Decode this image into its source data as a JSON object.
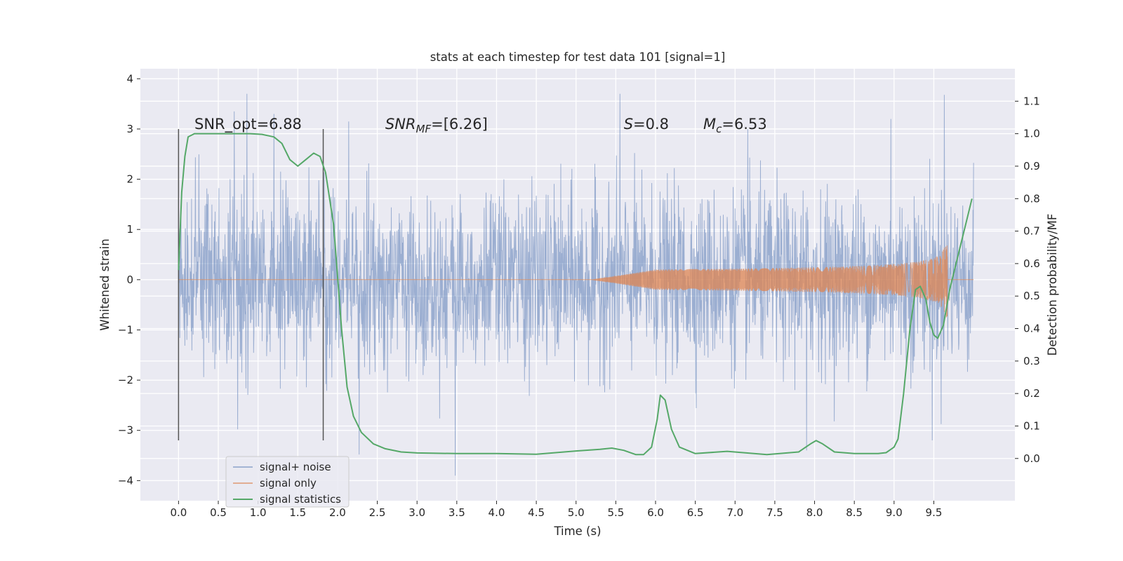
{
  "chart_data": {
    "type": "line",
    "title": "stats at each timestep for test data 101 [signal=1]",
    "xlabel": "Time (s)",
    "ylabel": "Whitened strain",
    "ylabel_right": "Detection probability/MF",
    "xlim": [
      -0.48,
      10.52
    ],
    "ylim": [
      -4.4,
      4.2
    ],
    "ylim_right": [
      -0.13,
      1.2
    ],
    "xticks": [
      0.0,
      0.5,
      1.0,
      1.5,
      2.0,
      2.5,
      3.0,
      3.5,
      4.0,
      4.5,
      5.0,
      5.5,
      6.0,
      6.5,
      7.0,
      7.5,
      8.0,
      8.5,
      9.0,
      9.5
    ],
    "xtick_labels": [
      "0.0",
      "0.5",
      "1.0",
      "1.5",
      "2.0",
      "2.5",
      "3.0",
      "3.5",
      "4.0",
      "4.5",
      "5.0",
      "5.5",
      "6.0",
      "6.5",
      "7.0",
      "7.5",
      "8.0",
      "8.5",
      "9.0",
      "9.5"
    ],
    "yticks": [
      -4,
      -3,
      -2,
      -1,
      0,
      1,
      2,
      3,
      4
    ],
    "ytick_labels": [
      "−4",
      "−3",
      "−2",
      "−1",
      "0",
      "1",
      "2",
      "3",
      "4"
    ],
    "yticks_right": [
      0.0,
      0.1,
      0.2,
      0.3,
      0.4,
      0.5,
      0.6,
      0.7,
      0.8,
      0.9,
      1.0,
      1.1
    ],
    "ytick_labels_right": [
      "0.0",
      "0.1",
      "0.2",
      "0.3",
      "0.4",
      "0.5",
      "0.6",
      "0.7",
      "0.8",
      "0.9",
      "1.0",
      "1.1"
    ],
    "grid": true,
    "legend_position": "lower-left",
    "vlines": [
      {
        "x": 0.0,
        "ymin": -3.2,
        "ymax": 3.0
      },
      {
        "x": 1.82,
        "ymin": -3.2,
        "ymax": 3.0
      }
    ],
    "annotations": {
      "snr_opt": {
        "prefix": "SNR_opt",
        "value": "6.88",
        "x": 0.2,
        "y": 3.0
      },
      "snr_mf": {
        "prefix": "SNR",
        "sub": "MF",
        "value": "[6.26]",
        "x": 2.6,
        "y": 3.0
      },
      "s": {
        "prefix": "S",
        "value": "0.8",
        "x": 5.6,
        "y": 3.0
      },
      "mc": {
        "prefix": "M",
        "sub": "c",
        "value": "6.53",
        "x": 6.6,
        "y": 3.0
      }
    },
    "series": [
      {
        "name": "signal+ noise",
        "color": "#4c72b0",
        "axis": "left",
        "x_range": [
          0.0,
          10.0
        ],
        "sample_step": 0.004,
        "envelope": [
          [
            -1.1,
            1.15
          ],
          [
            -1.1,
            1.15
          ]
        ],
        "peaks": [
          {
            "x": 0.86,
            "y": 3.72
          },
          {
            "x": 5.55,
            "y": 3.85
          },
          {
            "x": 9.63,
            "y": 3.68
          },
          {
            "x": 2.14,
            "y": 3.15
          },
          {
            "x": 7.16,
            "y": 3.0
          },
          {
            "x": 3.48,
            "y": -4.05
          },
          {
            "x": 2.27,
            "y": -3.48
          },
          {
            "x": 7.9,
            "y": -3.4
          },
          {
            "x": 9.48,
            "y": -3.2
          },
          {
            "x": 0.7,
            "y": 3.35
          },
          {
            "x": 1.2,
            "y": 3.3
          },
          {
            "x": 8.96,
            "y": 3.2
          }
        ],
        "amplitude_std": 0.85
      },
      {
        "name": "signal only",
        "color": "#dd8452",
        "axis": "left",
        "x_range": [
          0.0,
          10.0
        ],
        "chirp": {
          "start": 5.2,
          "end": 9.67,
          "peak_amp": 0.75
        }
      },
      {
        "name": "signal statistics",
        "color": "#55a868",
        "axis": "right",
        "x": [
          0.0,
          0.04,
          0.08,
          0.12,
          0.2,
          0.3,
          0.5,
          0.7,
          0.9,
          1.05,
          1.2,
          1.3,
          1.4,
          1.5,
          1.6,
          1.7,
          1.78,
          1.85,
          1.95,
          2.05,
          2.12,
          2.2,
          2.3,
          2.45,
          2.6,
          2.8,
          3.0,
          3.5,
          4.0,
          4.5,
          5.0,
          5.3,
          5.45,
          5.6,
          5.75,
          5.85,
          5.95,
          6.02,
          6.06,
          6.12,
          6.2,
          6.3,
          6.5,
          6.9,
          7.4,
          7.8,
          7.95,
          8.02,
          8.1,
          8.25,
          8.5,
          8.8,
          8.9,
          9.0,
          9.05,
          9.12,
          9.2,
          9.27,
          9.33,
          9.4,
          9.45,
          9.5,
          9.55,
          9.62,
          9.7,
          9.8,
          9.9,
          9.98
        ],
        "values": [
          0.58,
          0.82,
          0.93,
          0.99,
          1.0,
          1.0,
          1.0,
          1.0,
          1.0,
          0.998,
          0.99,
          0.97,
          0.92,
          0.9,
          0.92,
          0.94,
          0.93,
          0.88,
          0.72,
          0.4,
          0.22,
          0.13,
          0.08,
          0.045,
          0.03,
          0.02,
          0.017,
          0.015,
          0.015,
          0.013,
          0.023,
          0.028,
          0.032,
          0.025,
          0.012,
          0.012,
          0.035,
          0.12,
          0.195,
          0.18,
          0.09,
          0.035,
          0.015,
          0.022,
          0.012,
          0.02,
          0.045,
          0.055,
          0.045,
          0.02,
          0.015,
          0.015,
          0.018,
          0.035,
          0.06,
          0.2,
          0.4,
          0.52,
          0.53,
          0.49,
          0.42,
          0.38,
          0.37,
          0.41,
          0.52,
          0.62,
          0.72,
          0.8
        ]
      }
    ]
  }
}
